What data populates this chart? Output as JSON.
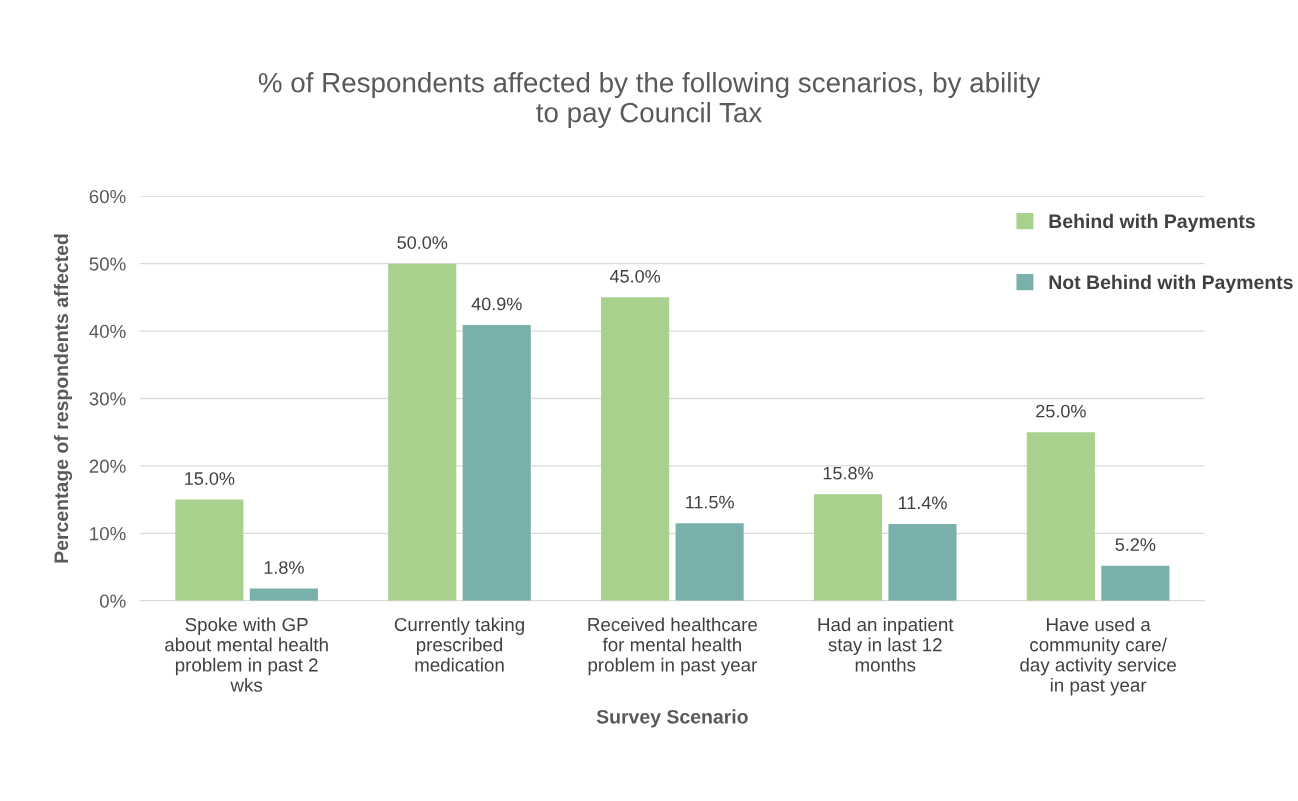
{
  "chart_data": {
    "type": "bar",
    "title": "% of Respondents affected by the following scenarios, by ability\nto pay Council Tax",
    "xlabel": "Survey Scenario",
    "ylabel": "Percentage of respondents affected",
    "categories": [
      "Spoke with GP\nabout mental health\nproblem in past 2\nwks",
      "Currently taking\nprescribed\nmedication",
      "Received healthcare\nfor mental health\nproblem in past year",
      "Had an inpatient\nstay in last 12\nmonths",
      "Have used a\ncommunity care/\nday activity service\nin past year"
    ],
    "series": [
      {
        "name": "Behind with Payments",
        "color": "#a9d18e",
        "values": [
          15.0,
          50.0,
          45.0,
          15.8,
          25.0
        ],
        "value_labels": [
          "15.0%",
          "50.0%",
          "45.0%",
          "15.8%",
          "25.0%"
        ]
      },
      {
        "name": "Not Behind with Payments",
        "color": "#7ab0ab",
        "values": [
          1.8,
          40.9,
          11.5,
          11.4,
          5.2
        ],
        "value_labels": [
          "1.8%",
          "40.9%",
          "11.5%",
          "11.4%",
          "5.2%"
        ]
      }
    ],
    "ylim": [
      0,
      60
    ],
    "yticks": [
      {
        "value": 0,
        "label": "0%"
      },
      {
        "value": 10,
        "label": "10%"
      },
      {
        "value": 20,
        "label": "20%"
      },
      {
        "value": 30,
        "label": "30%"
      },
      {
        "value": 40,
        "label": "40%"
      },
      {
        "value": 50,
        "label": "50%"
      },
      {
        "value": 60,
        "label": "60%"
      }
    ],
    "grid": "y",
    "legend": "top right"
  }
}
